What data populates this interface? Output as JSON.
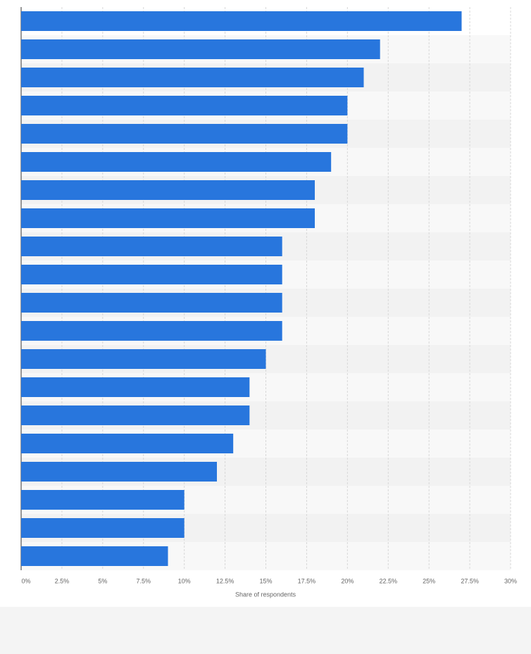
{
  "chart_data": {
    "type": "bar",
    "orientation": "horizontal",
    "x_label": "Share of respondents",
    "categories": [
      null,
      null,
      null,
      null,
      null,
      null,
      null,
      null,
      null,
      null,
      null,
      null,
      null,
      null,
      null,
      null,
      null,
      null,
      null,
      null
    ],
    "values": [
      27,
      22,
      21,
      20,
      20,
      19,
      18,
      18,
      16,
      16,
      16,
      16,
      15,
      14,
      14,
      13,
      12,
      10,
      10,
      9
    ],
    "color": "#2876dd",
    "xlim": [
      0,
      30
    ],
    "xticks": [
      {
        "value": 0,
        "label": "0%"
      },
      {
        "value": 2.5,
        "label": "2.5%"
      },
      {
        "value": 5,
        "label": "5%"
      },
      {
        "value": 7.5,
        "label": "7.5%"
      },
      {
        "value": 10,
        "label": "10%"
      },
      {
        "value": 12.5,
        "label": "12.5%"
      },
      {
        "value": 15,
        "label": "15%"
      },
      {
        "value": 17.5,
        "label": "17.5%"
      },
      {
        "value": 20,
        "label": "20%"
      },
      {
        "value": 22.5,
        "label": "22.5%"
      },
      {
        "value": 25,
        "label": "25%"
      },
      {
        "value": 27.5,
        "label": "27.5%"
      },
      {
        "value": 30,
        "label": "30%"
      }
    ],
    "grid": true
  }
}
